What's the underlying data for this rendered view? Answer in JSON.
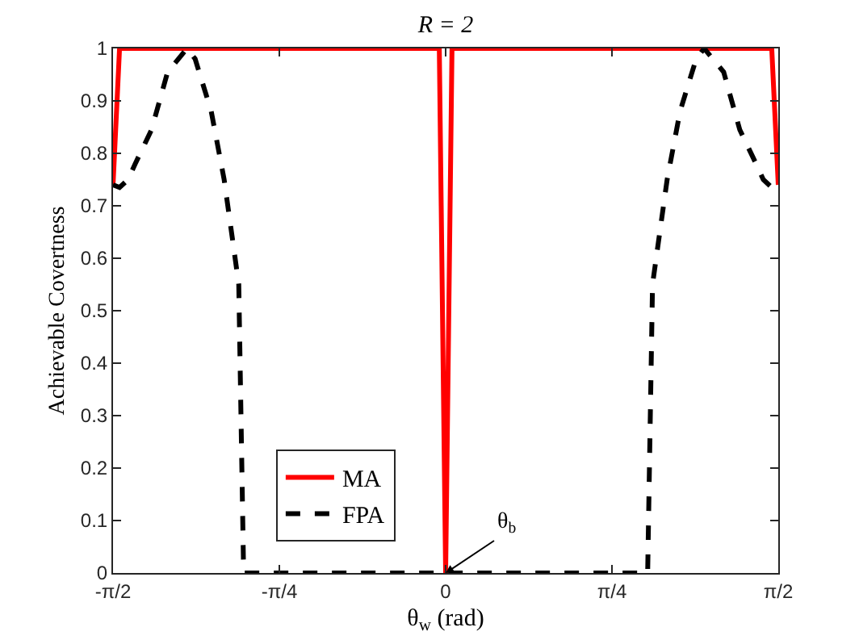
{
  "chart_data": {
    "type": "line",
    "title": "R = 2",
    "xlabel": "θ$_{w}$ (rad)",
    "ylabel": "Achievable Covertness",
    "xlim": [
      -1.5708,
      1.5708
    ],
    "xticks": [
      {
        "value": -1.5708,
        "label": "-π/2"
      },
      {
        "value": -0.7854,
        "label": "-π/4"
      },
      0,
      {
        "value": 0.7854,
        "label": "π/4"
      },
      {
        "value": 1.5708,
        "label": "π/2"
      }
    ],
    "ylim": [
      0,
      1
    ],
    "yticks": [
      0,
      0.1,
      0.2,
      0.3,
      0.4,
      0.5,
      0.6,
      0.7,
      0.8,
      0.9,
      1
    ],
    "series": [
      {
        "name": "MA",
        "color": "#ff0000",
        "line_style": "solid",
        "x": [
          -1.5708,
          -1.54,
          -0.03,
          0,
          0.03,
          1.54,
          1.5708
        ],
        "values": [
          0.74,
          1,
          1,
          0,
          1,
          1,
          0.74
        ]
      },
      {
        "name": "FPA",
        "color": "#000000",
        "line_style": "dashed",
        "x": [
          -1.5708,
          -1.54,
          -1.5,
          -1.466,
          -1.389,
          -1.313,
          -1.221,
          -1.183,
          -1.107,
          -1.046,
          -1.008,
          -0.977,
          -0.954,
          0.954,
          0.977,
          1.008,
          1.046,
          1.107,
          1.183,
          1.221,
          1.313,
          1.389,
          1.466,
          1.5,
          1.54,
          1.5708
        ],
        "values": [
          0.74,
          0.735,
          0.75,
          0.78,
          0.845,
          0.955,
          1,
          0.98,
          0.88,
          0.75,
          0.64,
          0.55,
          0,
          0,
          0.55,
          0.64,
          0.75,
          0.88,
          0.98,
          1,
          0.955,
          0.845,
          0.78,
          0.75,
          0.735,
          0.74
        ]
      }
    ],
    "annotations": [
      {
        "text": "θ$_{b}$",
        "x": 0,
        "y": 0
      }
    ],
    "legend": "bottom left",
    "marker": "none"
  }
}
